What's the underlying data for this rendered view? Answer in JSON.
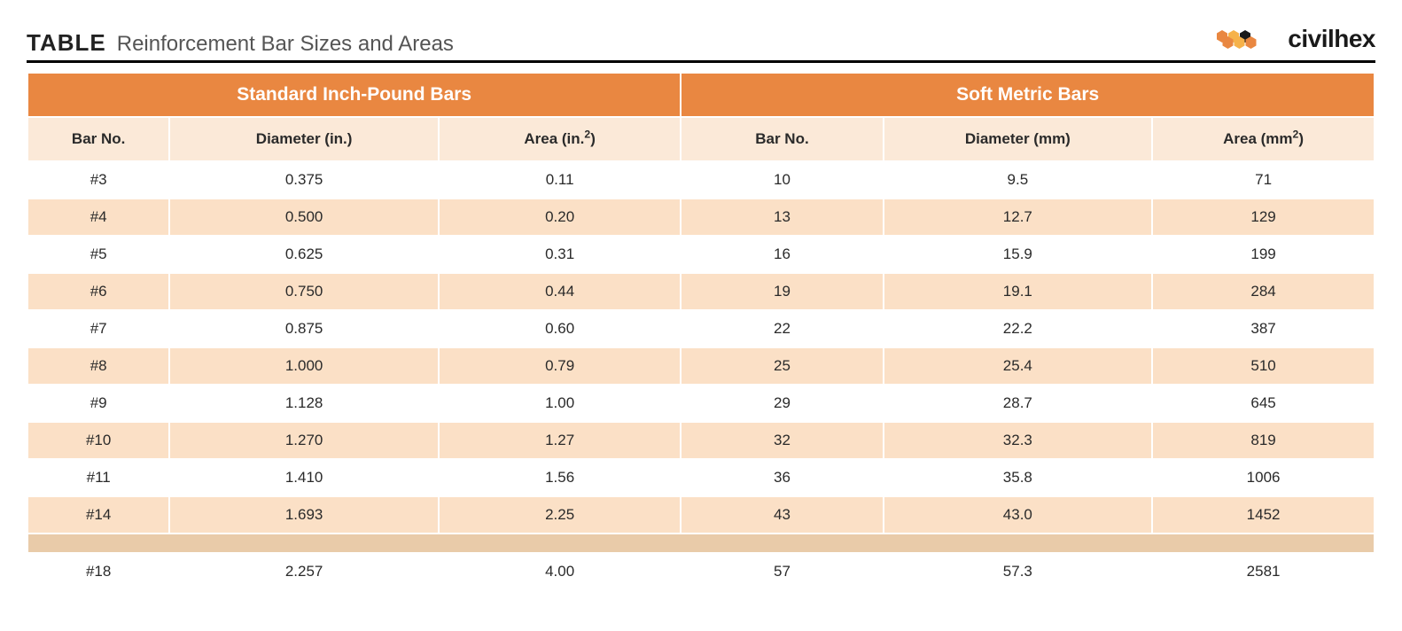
{
  "brand": {
    "name": "civilhex"
  },
  "title": {
    "label": "TABLE",
    "subtitle": "Reinforcement Bar Sizes and Areas"
  },
  "colors": {
    "header_bg": "#e98741",
    "header_text": "#ffffff",
    "subhead_bg": "#fbe9d8",
    "row_a_bg": "#ffffff",
    "row_b_bg": "#fbe0c6",
    "rule": "#000000",
    "text": "#2a2a2a",
    "hex_orange": "#e98741",
    "hex_gold": "#f6b24a",
    "hex_dark": "#1a1a1a"
  },
  "typography": {
    "title_fontsize": 26,
    "subtitle_fontsize": 24,
    "group_fontsize": 21,
    "colhead_fontsize": 17,
    "cell_fontsize": 17,
    "brand_fontsize": 28
  },
  "table": {
    "type": "table",
    "column_widths_pct": [
      10.5,
      20,
      18,
      15,
      20,
      16.5
    ],
    "groups": [
      {
        "label": "Standard Inch-Pound Bars",
        "span": 3
      },
      {
        "label": "Soft Metric Bars",
        "span": 3
      }
    ],
    "columns": [
      {
        "label": "Bar No."
      },
      {
        "label_html": "Diameter (in.)"
      },
      {
        "label_html": "Area (in.<span class=\"sup\">2</span>)"
      },
      {
        "label": "Bar No."
      },
      {
        "label_html": "Diameter (mm)"
      },
      {
        "label_html": "Area (mm<span class=\"sup\">2</span>)"
      }
    ],
    "rows": [
      [
        "#3",
        "0.375",
        "0.11",
        "10",
        "9.5",
        "71"
      ],
      [
        "#4",
        "0.500",
        "0.20",
        "13",
        "12.7",
        "129"
      ],
      [
        "#5",
        "0.625",
        "0.31",
        "16",
        "15.9",
        "199"
      ],
      [
        "#6",
        "0.750",
        "0.44",
        "19",
        "19.1",
        "284"
      ],
      [
        "#7",
        "0.875",
        "0.60",
        "22",
        "22.2",
        "387"
      ],
      [
        "#8",
        "1.000",
        "0.79",
        "25",
        "25.4",
        "510"
      ],
      [
        "#9",
        "1.128",
        "1.00",
        "29",
        "28.7",
        "645"
      ],
      [
        "#10",
        "1.270",
        "1.27",
        "32",
        "32.3",
        "819"
      ],
      [
        "#11",
        "1.410",
        "1.56",
        "36",
        "35.8",
        "1006"
      ],
      [
        "#14",
        "1.693",
        "2.25",
        "43",
        "43.0",
        "1452"
      ]
    ],
    "rows_tail": [
      [
        "#18",
        "2.257",
        "4.00",
        "57",
        "57.3",
        "2581"
      ]
    ]
  }
}
